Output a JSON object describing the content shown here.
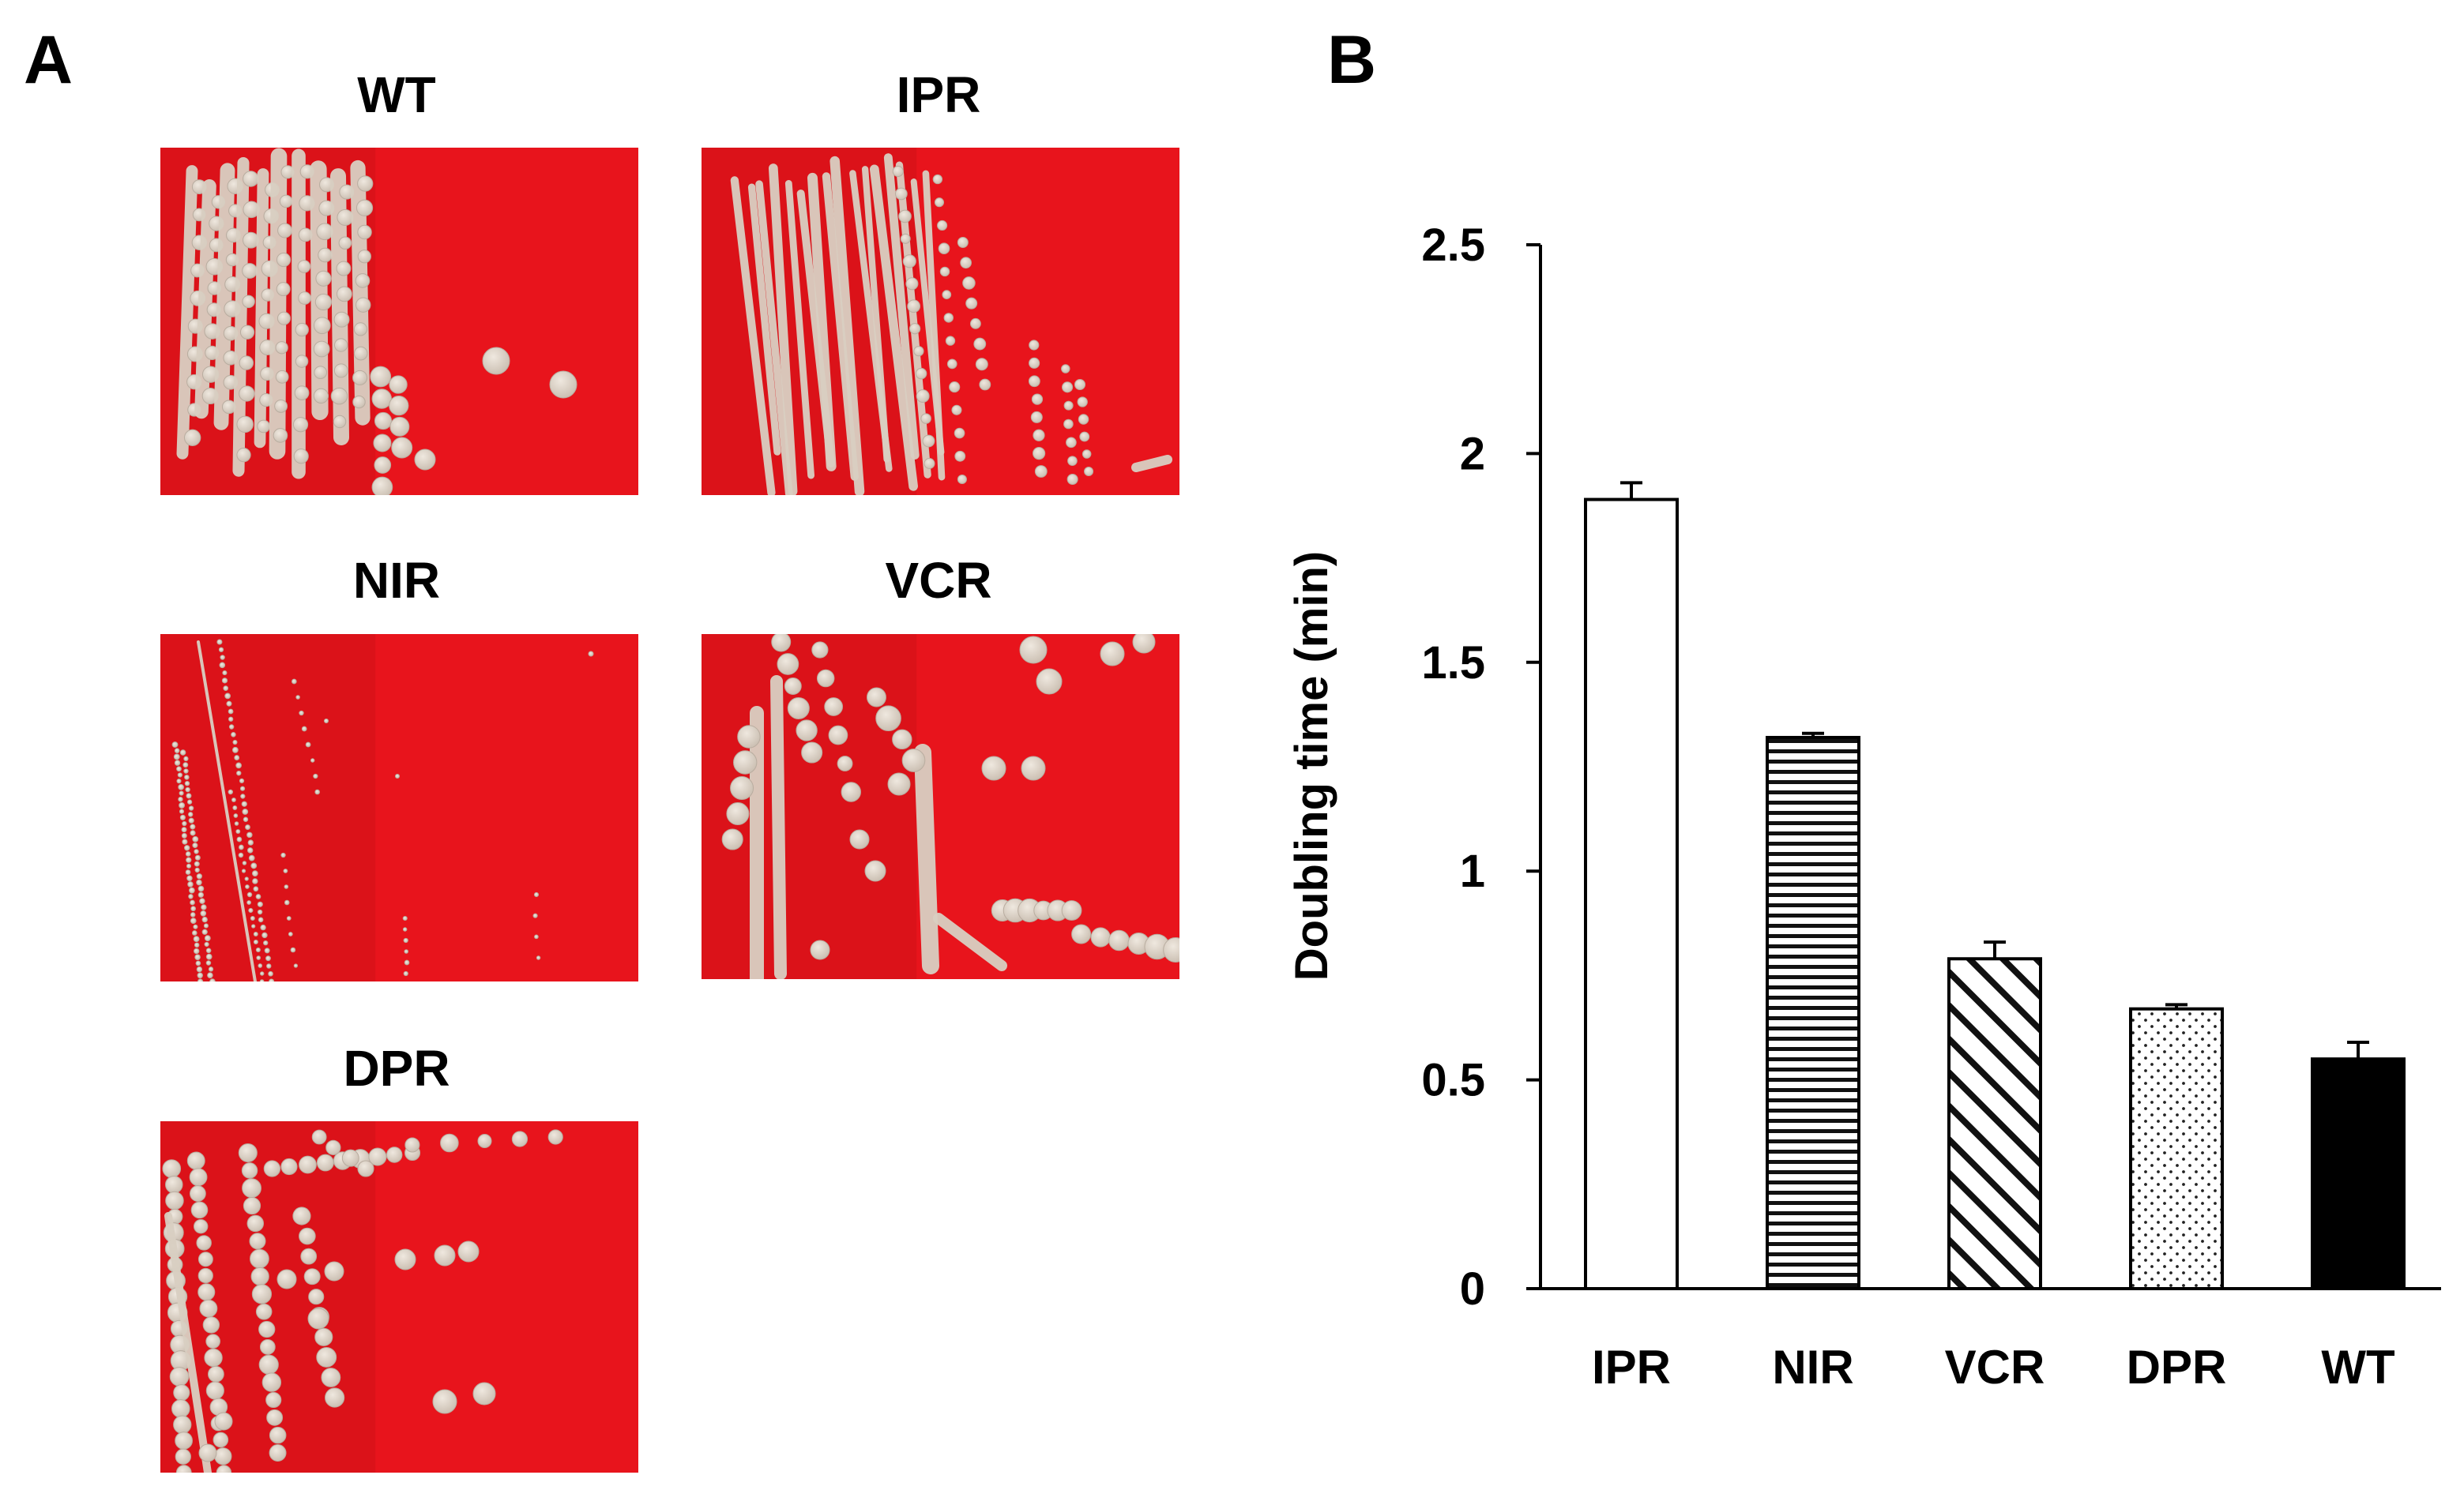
{
  "panel_a": {
    "letter": "A",
    "plates": [
      {
        "id": "wt",
        "title": "WT",
        "style": "long-streaks"
      },
      {
        "id": "ipr",
        "title": "IPR",
        "style": "dense-streaks"
      },
      {
        "id": "nir",
        "title": "NIR",
        "style": "tiny-colonies"
      },
      {
        "id": "vcr",
        "title": "VCR",
        "style": "mixed-colonies"
      },
      {
        "id": "dpr",
        "title": "DPR",
        "style": "dotted-streaks"
      }
    ],
    "colors": {
      "agar": "#e8141c",
      "agar_dark": "#c40d15",
      "colony": "#d9cfc2",
      "colony_edge": "#b9ada0"
    }
  },
  "panel_b": {
    "letter": "B"
  },
  "chart_data": {
    "type": "bar",
    "title": "",
    "xlabel": "",
    "ylabel": "Doubling time (min)",
    "ylim": [
      0,
      2.5
    ],
    "yticks": [
      0,
      0.5,
      1,
      1.5,
      2,
      2.5
    ],
    "ytick_labels": [
      "0",
      "0.5",
      "1",
      "1.5",
      "2",
      "2.5"
    ],
    "categories": [
      "IPR",
      "NIR",
      "VCR",
      "DPR",
      "WT"
    ],
    "values": [
      1.89,
      1.32,
      0.79,
      0.67,
      0.55
    ],
    "errors": [
      0.04,
      0.01,
      0.04,
      0.01,
      0.04
    ],
    "fills": [
      "white",
      "horizontal-lines",
      "diagonal-lines",
      "dots",
      "black"
    ],
    "grid": false,
    "legend": "none"
  }
}
